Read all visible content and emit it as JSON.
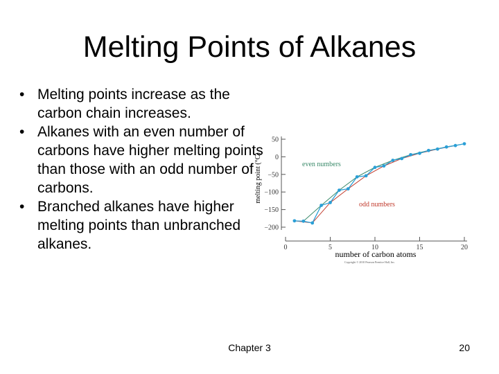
{
  "slide": {
    "title": "Melting Points of Alkanes",
    "bullets": [
      "Melting points increase as the carbon chain increases.",
      "Alkanes with an even number of carbons have higher melting points than those with an odd number of carbons.",
      "Branched alkanes have higher melting points than unbranched alkanes."
    ],
    "bullet_symbol": "•",
    "footer_text": "Chapter 3",
    "page_number": "20"
  },
  "chart_data": {
    "type": "line",
    "title": "",
    "xlabel": "number of carbon atoms",
    "ylabel": "melting point (°C)",
    "xlim": [
      0,
      20
    ],
    "ylim": [
      -200,
      50
    ],
    "xticks": [
      0,
      5,
      10,
      15,
      20
    ],
    "yticks": [
      50,
      0,
      -50,
      -100,
      -150,
      -200
    ],
    "annotations": [
      "even numbers",
      "odd numbers"
    ],
    "series": [
      {
        "name": "",
        "x": [
          1,
          2,
          3,
          4,
          5,
          6,
          7,
          8,
          9,
          10,
          11,
          12,
          13,
          14,
          15,
          16,
          17,
          18,
          19,
          20
        ],
        "values": [
          -182,
          -183,
          -188,
          -138,
          -130,
          -95,
          -91,
          -57,
          -54,
          -30,
          -26,
          -10,
          -5,
          6,
          10,
          18,
          22,
          28,
          32,
          37
        ]
      }
    ],
    "trend_lines": [
      {
        "label": "even numbers",
        "x": [
          2,
          4,
          6,
          8,
          10,
          12,
          14,
          16,
          18,
          20
        ],
        "values": [
          -183,
          -138,
          -95,
          -57,
          -30,
          -10,
          6,
          18,
          28,
          37
        ]
      },
      {
        "label": "odd numbers",
        "x": [
          1,
          3,
          5,
          7,
          9,
          11,
          13,
          15,
          17,
          19
        ],
        "values": [
          -182,
          -188,
          -130,
          -91,
          -54,
          -26,
          -5,
          10,
          22,
          32
        ]
      }
    ],
    "colors": {
      "series": "#2a9fd6",
      "even_trend": "#3a8a6a",
      "odd_trend": "#c0392b"
    },
    "copyright": "Copyright © 2010 Pearson Prentice Hall, Inc."
  }
}
